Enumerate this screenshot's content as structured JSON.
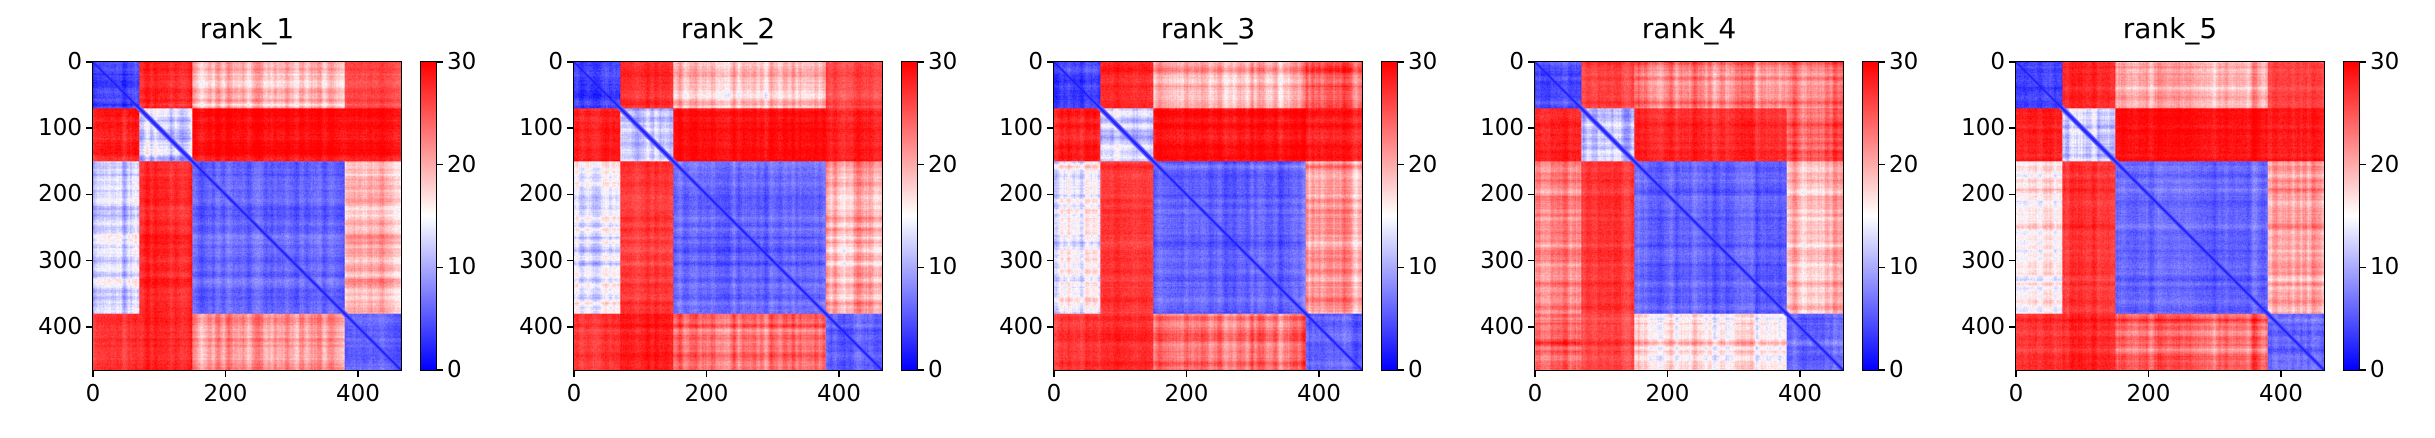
{
  "chart_data": [
    {
      "type": "heatmap",
      "title": "rank_1",
      "n": 465,
      "domains": [
        [
          0,
          70
        ],
        [
          70,
          150
        ],
        [
          150,
          380
        ],
        [
          380,
          465
        ]
      ],
      "domain_mean_pae": [
        [
          4,
          28,
          19,
          26
        ],
        [
          28,
          12,
          29,
          29
        ],
        [
          13,
          28,
          6,
          20
        ],
        [
          27,
          28,
          21,
          6
        ]
      ],
      "xticks": [
        "0",
        "200",
        "400"
      ],
      "yticks": [
        "0",
        "100",
        "200",
        "300",
        "400"
      ],
      "colorbar": {
        "ticks": [
          "0",
          "10",
          "20",
          "30"
        ],
        "range": [
          0,
          30
        ],
        "cmap": "bwr"
      }
    },
    {
      "type": "heatmap",
      "title": "rank_2",
      "n": 465,
      "domains": [
        [
          0,
          70
        ],
        [
          70,
          150
        ],
        [
          150,
          380
        ],
        [
          380,
          465
        ]
      ],
      "domain_mean_pae": [
        [
          4,
          28,
          19,
          26
        ],
        [
          28,
          12,
          29,
          28
        ],
        [
          14,
          27,
          6,
          20
        ],
        [
          27,
          29,
          24,
          6
        ]
      ],
      "xticks": [
        "0",
        "200",
        "400"
      ],
      "yticks": [
        "0",
        "100",
        "200",
        "300",
        "400"
      ],
      "colorbar": {
        "ticks": [
          "0",
          "10",
          "20",
          "30"
        ],
        "range": [
          0,
          30
        ],
        "cmap": "bwr"
      }
    },
    {
      "type": "heatmap",
      "title": "rank_3",
      "n": 465,
      "domains": [
        [
          0,
          70
        ],
        [
          70,
          150
        ],
        [
          150,
          380
        ],
        [
          380,
          465
        ]
      ],
      "domain_mean_pae": [
        [
          4,
          28,
          20,
          25
        ],
        [
          28,
          12,
          29,
          28
        ],
        [
          15,
          27,
          6,
          21
        ],
        [
          27,
          28,
          24,
          6
        ]
      ],
      "xticks": [
        "0",
        "200",
        "400"
      ],
      "yticks": [
        "0",
        "100",
        "200",
        "300",
        "400"
      ],
      "colorbar": {
        "ticks": [
          "0",
          "10",
          "20",
          "30"
        ],
        "range": [
          0,
          30
        ],
        "cmap": "bwr"
      }
    },
    {
      "type": "heatmap",
      "title": "rank_4",
      "n": 465,
      "domains": [
        [
          0,
          70
        ],
        [
          70,
          150
        ],
        [
          150,
          380
        ],
        [
          380,
          465
        ]
      ],
      "domain_mean_pae": [
        [
          4,
          26,
          22,
          22
        ],
        [
          28,
          12,
          28,
          25
        ],
        [
          22,
          27,
          6,
          19
        ],
        [
          24,
          26,
          17,
          6
        ]
      ],
      "xticks": [
        "0",
        "200",
        "400"
      ],
      "yticks": [
        "0",
        "100",
        "200",
        "300",
        "400"
      ],
      "colorbar": {
        "ticks": [
          "0",
          "10",
          "20",
          "30"
        ],
        "range": [
          0,
          30
        ],
        "cmap": "bwr"
      }
    },
    {
      "type": "heatmap",
      "title": "rank_5",
      "n": 465,
      "domains": [
        [
          0,
          70
        ],
        [
          70,
          150
        ],
        [
          150,
          380
        ],
        [
          380,
          465
        ]
      ],
      "domain_mean_pae": [
        [
          4,
          28,
          20,
          26
        ],
        [
          28,
          12,
          29,
          28
        ],
        [
          16,
          27,
          6,
          20
        ],
        [
          27,
          28,
          24,
          6
        ]
      ],
      "xticks": [
        "0",
        "200",
        "400"
      ],
      "yticks": [
        "0",
        "100",
        "200",
        "300",
        "400"
      ],
      "colorbar": {
        "ticks": [
          "0",
          "10",
          "20",
          "30"
        ],
        "range": [
          0,
          30
        ],
        "cmap": "bwr"
      }
    }
  ],
  "colors": {
    "low": "#0000ff",
    "mid": "#ffffff",
    "high": "#ff0000"
  }
}
